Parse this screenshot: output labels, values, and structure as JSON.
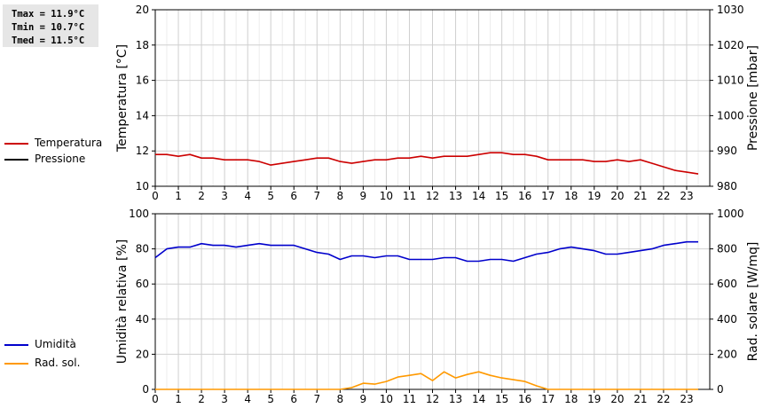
{
  "stats": {
    "tmax": "Tmax = 11.9°C",
    "tmin": "Tmin = 10.7°C",
    "tmed": "Tmed = 11.5°C"
  },
  "legend_top": [
    {
      "label": "Temperatura",
      "color": "#cc0000"
    },
    {
      "label": "Pressione",
      "color": "#000000"
    }
  ],
  "legend_bottom": [
    {
      "label": "Umidità",
      "color": "#0000cc"
    },
    {
      "label": "Rad. sol.",
      "color": "#ff9900"
    }
  ],
  "chart_data": [
    {
      "type": "line",
      "xlabel": "",
      "ylabel": "Temperatura [°C]",
      "y2label": "Pressione [mbar]",
      "xlim": [
        0,
        24
      ],
      "ylim": [
        10,
        20
      ],
      "y2lim": [
        980,
        1030
      ],
      "xticks": [
        "0",
        "1",
        "2",
        "3",
        "4",
        "5",
        "6",
        "7",
        "8",
        "9",
        "10",
        "11",
        "12",
        "13",
        "14",
        "15",
        "16",
        "17",
        "18",
        "19",
        "20",
        "21",
        "22",
        "23"
      ],
      "yticks": [
        "10",
        "12",
        "14",
        "16",
        "18",
        "20"
      ],
      "y2ticks": [
        "980",
        "990",
        "1000",
        "1010",
        "1020",
        "1030"
      ],
      "grid": true,
      "series": [
        {
          "name": "Temperatura",
          "axis": "left",
          "color": "#cc0000",
          "x": [
            0,
            0.5,
            1,
            1.5,
            2,
            2.5,
            3,
            3.5,
            4,
            4.5,
            5,
            5.5,
            6,
            6.5,
            7,
            7.5,
            8,
            8.5,
            9,
            9.5,
            10,
            10.5,
            11,
            11.5,
            12,
            12.5,
            13,
            13.5,
            14,
            14.5,
            15,
            15.5,
            16,
            16.5,
            17,
            17.5,
            18,
            18.5,
            19,
            19.5,
            20,
            20.5,
            21,
            21.5,
            22,
            22.5,
            23,
            23.5
          ],
          "y": [
            11.8,
            11.8,
            11.7,
            11.8,
            11.6,
            11.6,
            11.5,
            11.5,
            11.5,
            11.4,
            11.2,
            11.3,
            11.4,
            11.5,
            11.6,
            11.6,
            11.4,
            11.3,
            11.4,
            11.5,
            11.5,
            11.6,
            11.6,
            11.7,
            11.6,
            11.7,
            11.7,
            11.7,
            11.8,
            11.9,
            11.9,
            11.8,
            11.8,
            11.7,
            11.5,
            11.5,
            11.5,
            11.5,
            11.4,
            11.4,
            11.5,
            11.4,
            11.5,
            11.3,
            11.1,
            10.9,
            10.8,
            10.7
          ]
        },
        {
          "name": "Pressione",
          "axis": "right",
          "color": "#000000",
          "x": [],
          "y": []
        }
      ]
    },
    {
      "type": "line",
      "xlabel": "",
      "ylabel": "Umidità relativa [%]",
      "y2label": "Rad. solare [W/mq]",
      "xlim": [
        0,
        24
      ],
      "ylim": [
        0,
        100
      ],
      "y2lim": [
        0,
        1000
      ],
      "xticks": [
        "0",
        "1",
        "2",
        "3",
        "4",
        "5",
        "6",
        "7",
        "8",
        "9",
        "10",
        "11",
        "12",
        "13",
        "14",
        "15",
        "16",
        "17",
        "18",
        "19",
        "20",
        "21",
        "22",
        "23"
      ],
      "yticks": [
        "0",
        "20",
        "40",
        "60",
        "80",
        "100"
      ],
      "y2ticks": [
        "0",
        "200",
        "400",
        "600",
        "800",
        "1000"
      ],
      "grid": true,
      "series": [
        {
          "name": "Umidità",
          "axis": "left",
          "color": "#0000cc",
          "x": [
            0,
            0.5,
            1,
            1.5,
            2,
            2.5,
            3,
            3.5,
            4,
            4.5,
            5,
            5.5,
            6,
            6.5,
            7,
            7.5,
            8,
            8.5,
            9,
            9.5,
            10,
            10.5,
            11,
            11.5,
            12,
            12.5,
            13,
            13.5,
            14,
            14.5,
            15,
            15.5,
            16,
            16.5,
            17,
            17.5,
            18,
            18.5,
            19,
            19.5,
            20,
            20.5,
            21,
            21.5,
            22,
            22.5,
            23,
            23.5
          ],
          "y": [
            75,
            80,
            81,
            81,
            83,
            82,
            82,
            81,
            82,
            83,
            82,
            82,
            82,
            80,
            78,
            77,
            74,
            76,
            76,
            75,
            76,
            76,
            74,
            74,
            74,
            75,
            75,
            73,
            73,
            74,
            74,
            73,
            75,
            77,
            78,
            80,
            81,
            80,
            79,
            77,
            77,
            78,
            79,
            80,
            82,
            83,
            84,
            84
          ]
        },
        {
          "name": "Rad. sol.",
          "axis": "right",
          "color": "#ff9900",
          "x": [
            0,
            1,
            2,
            3,
            4,
            5,
            6,
            7,
            8,
            8.5,
            9,
            9.5,
            10,
            10.5,
            11,
            11.5,
            12,
            12.5,
            13,
            13.5,
            14,
            14.5,
            15,
            15.5,
            16,
            16.5,
            17,
            18,
            19,
            20,
            21,
            22,
            23,
            23.5
          ],
          "y": [
            0,
            0,
            0,
            0,
            0,
            0,
            0,
            0,
            0,
            10,
            35,
            30,
            45,
            70,
            80,
            90,
            50,
            100,
            65,
            85,
            100,
            80,
            65,
            55,
            45,
            20,
            0,
            0,
            0,
            0,
            0,
            0,
            0,
            0
          ]
        }
      ]
    }
  ]
}
